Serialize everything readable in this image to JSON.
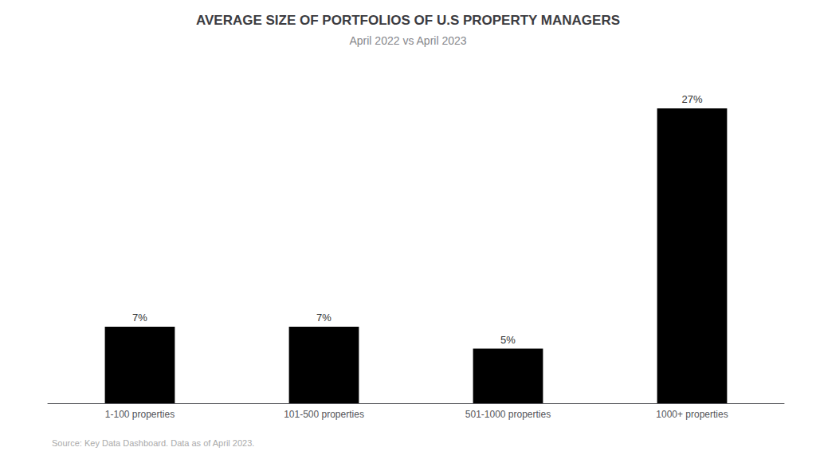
{
  "chart_data": {
    "type": "bar",
    "title": "AVERAGE SIZE OF PORTFOLIOS OF U.S PROPERTY MANAGERS",
    "subtitle": "April 2022 vs April 2023",
    "annotation": "Source: Key Data Dashboard. Data as of April 2023.",
    "categories": [
      "1-100 properties",
      "101-500 properties",
      "501-1000 properties",
      "1000+ properties"
    ],
    "values": [
      7,
      7,
      5,
      27
    ],
    "value_labels": [
      "7%",
      "7%",
      "5%",
      "27%"
    ],
    "data_labels": true,
    "color": "#000000",
    "ylim": [
      0,
      30
    ],
    "grid": false,
    "tick_labels": "x"
  }
}
